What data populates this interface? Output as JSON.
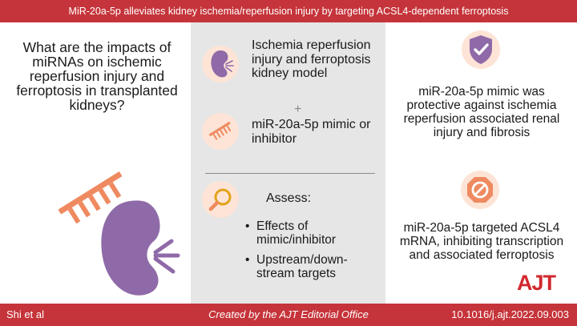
{
  "header": {
    "title": "MiR-20a-5p alleviates kidney ischemia/reperfusion injury by targeting ACSL4-dependent ferroptosis"
  },
  "left": {
    "question": "What are the impacts of miRNAs on ischemic reperfusion injury and ferroptosis in transplanted kidneys?"
  },
  "middle": {
    "model_text": "Ischemia reperfusion injury and ferroptosis kidney model",
    "plus": "+",
    "mimic_text": "miR-20a-5p mimic or inhibitor",
    "assess_label": "Assess:",
    "bullets": [
      "Effects of mimic/inhibitor",
      "Upstream/down-stream targets"
    ]
  },
  "right": {
    "finding_1": "miR-20a-5p mimic was protective against ischemia reperfusion associated renal injury and fibrosis",
    "finding_2": "miR-20a-5p targeted ACSL4 mRNA, inhibiting transcription and associated ferroptosis",
    "logo": "AJT"
  },
  "footer": {
    "authors": "Shi et al",
    "credit": "Created by the AJT Editorial Office",
    "doi": "10.1016/j.ajt.2022.09.003"
  },
  "colors": {
    "brand_red": "#c5343a",
    "kidney_purple": "#8f6aa8",
    "mirna_orange": "#ef8a60",
    "circle_peach": "#fde4d6"
  }
}
